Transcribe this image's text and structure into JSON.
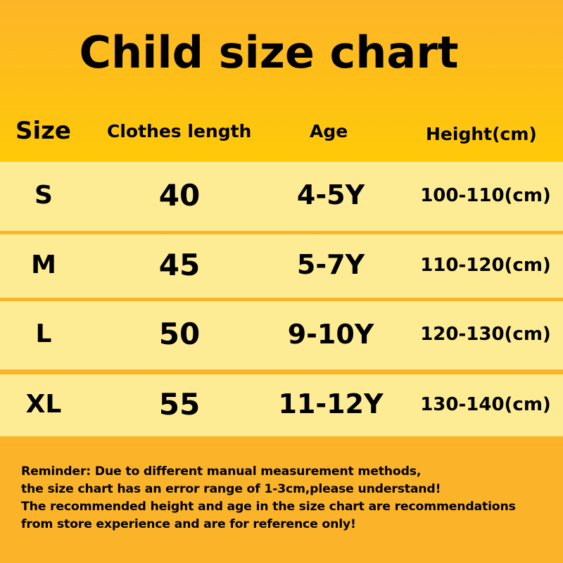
{
  "title": "Child size chart",
  "columns": [
    "Size",
    "Clothes length",
    "Age",
    "Height(cm)"
  ],
  "rows": [
    {
      "size": "S",
      "length": "40",
      "age": "4-5Y",
      "height": "100-110(cm)"
    },
    {
      "size": "M",
      "length": "45",
      "age": "5-7Y",
      "height": "110-120(cm)"
    },
    {
      "size": "L",
      "length": "50",
      "age": "9-10Y",
      "height": "120-130(cm)"
    },
    {
      "size": "XL",
      "length": "55",
      "age": "11-12Y",
      "height": "130-140(cm)"
    }
  ],
  "reminder": [
    "Reminder: Due to different manual measurement methods,",
    "the size chart has an error range of 1-3cm,please understand!",
    "The recommended height and age in the size chart are recommendations",
    "from store experience and are for reference only!"
  ],
  "colors": {
    "header": "#ffc800",
    "row": "#fdec94",
    "footer": "#fbb42a"
  }
}
